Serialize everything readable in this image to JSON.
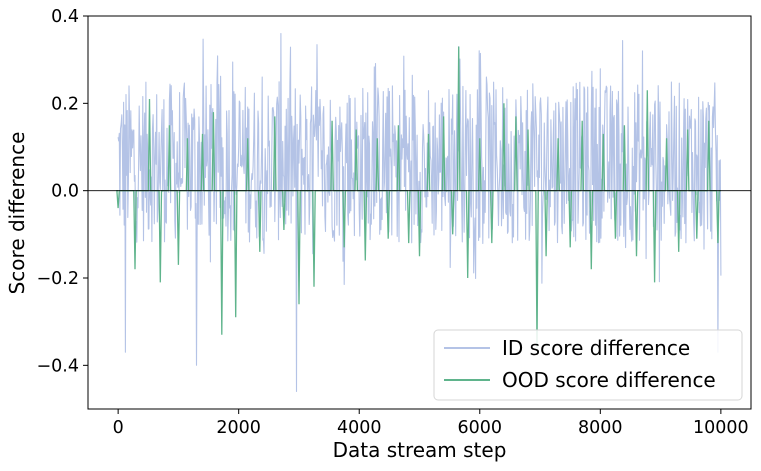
{
  "chart_data": {
    "type": "line",
    "title": "",
    "xlabel": "Data stream step",
    "ylabel": "Score difference",
    "xlim": [
      -500,
      10500
    ],
    "ylim": [
      -0.5,
      0.4
    ],
    "x_ticks": [
      0,
      2000,
      4000,
      6000,
      8000,
      10000
    ],
    "x_tick_labels": [
      "0",
      "2000",
      "4000",
      "6000",
      "8000",
      "10000"
    ],
    "y_ticks": [
      -0.4,
      -0.2,
      0.0,
      0.2,
      0.4
    ],
    "y_tick_labels": [
      "−0.4",
      "−0.2",
      "0.0",
      "0.2",
      "0.4"
    ],
    "reference_line": {
      "y": 0.0,
      "color": "#000000"
    },
    "grid": false,
    "legend_position": "lower-right",
    "series": [
      {
        "name": "ID score difference",
        "color": "#b4c3e6",
        "x_start": 0,
        "x_end": 10000,
        "value_range": [
          -0.46,
          0.36
        ],
        "typical_band": [
          -0.12,
          0.25
        ],
        "extremes": [
          {
            "x": 2700,
            "y": 0.36
          },
          {
            "x": 2960,
            "y": -0.46
          },
          {
            "x": 120,
            "y": -0.37
          },
          {
            "x": 1300,
            "y": -0.4
          },
          {
            "x": 9950,
            "y": -0.37
          },
          {
            "x": 5650,
            "y": 0.33
          },
          {
            "x": 8700,
            "y": 0.32
          }
        ]
      },
      {
        "name": "OOD score difference",
        "color": "#5fb48c",
        "x_start": 0,
        "x_end": 10000,
        "value_range": [
          -0.36,
          0.33
        ],
        "spikes": [
          {
            "x": 0,
            "y": -0.04
          },
          {
            "x": 280,
            "y": -0.18
          },
          {
            "x": 520,
            "y": 0.21
          },
          {
            "x": 700,
            "y": -0.21
          },
          {
            "x": 850,
            "y": 0.15
          },
          {
            "x": 1000,
            "y": -0.17
          },
          {
            "x": 1150,
            "y": 0.12
          },
          {
            "x": 1400,
            "y": 0.13
          },
          {
            "x": 1580,
            "y": 0.18
          },
          {
            "x": 1720,
            "y": -0.33
          },
          {
            "x": 1950,
            "y": -0.29
          },
          {
            "x": 2150,
            "y": 0.12
          },
          {
            "x": 2350,
            "y": -0.14
          },
          {
            "x": 2600,
            "y": 0.17
          },
          {
            "x": 2750,
            "y": -0.09
          },
          {
            "x": 3000,
            "y": -0.26
          },
          {
            "x": 3250,
            "y": -0.22
          },
          {
            "x": 3550,
            "y": 0.16
          },
          {
            "x": 3750,
            "y": -0.13
          },
          {
            "x": 3950,
            "y": 0.14
          },
          {
            "x": 4100,
            "y": -0.16
          },
          {
            "x": 4300,
            "y": 0.12
          },
          {
            "x": 4480,
            "y": -0.11
          },
          {
            "x": 4650,
            "y": 0.15
          },
          {
            "x": 4820,
            "y": -0.12
          },
          {
            "x": 5000,
            "y": -0.15
          },
          {
            "x": 5150,
            "y": 0.13
          },
          {
            "x": 5400,
            "y": 0.17
          },
          {
            "x": 5550,
            "y": -0.1
          },
          {
            "x": 5650,
            "y": 0.33
          },
          {
            "x": 5800,
            "y": -0.2
          },
          {
            "x": 6000,
            "y": 0.12
          },
          {
            "x": 6200,
            "y": -0.12
          },
          {
            "x": 6400,
            "y": 0.2
          },
          {
            "x": 6600,
            "y": 0.17
          },
          {
            "x": 6800,
            "y": 0.14
          },
          {
            "x": 6950,
            "y": -0.36
          },
          {
            "x": 7100,
            "y": -0.15
          },
          {
            "x": 7300,
            "y": 0.12
          },
          {
            "x": 7500,
            "y": -0.13
          },
          {
            "x": 7700,
            "y": 0.16
          },
          {
            "x": 7850,
            "y": -0.18
          },
          {
            "x": 8050,
            "y": 0.13
          },
          {
            "x": 8250,
            "y": -0.11
          },
          {
            "x": 8400,
            "y": 0.15
          },
          {
            "x": 8600,
            "y": -0.15
          },
          {
            "x": 8780,
            "y": 0.23
          },
          {
            "x": 8900,
            "y": -0.21
          },
          {
            "x": 9100,
            "y": 0.12
          },
          {
            "x": 9300,
            "y": -0.14
          },
          {
            "x": 9450,
            "y": 0.14
          },
          {
            "x": 9600,
            "y": -0.11
          },
          {
            "x": 9800,
            "y": 0.16
          },
          {
            "x": 9950,
            "y": -0.12
          }
        ]
      }
    ]
  }
}
